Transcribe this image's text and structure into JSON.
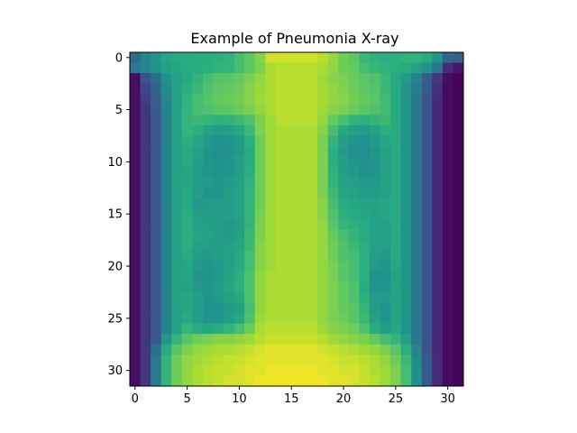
{
  "chart_data": {
    "type": "heatmap",
    "title": "Example of Pneumonia X-ray",
    "xlabel": "",
    "ylabel": "",
    "colormap": "viridis",
    "origin": "upper",
    "xlim": [
      -0.5,
      31.5
    ],
    "ylim": [
      31.5,
      -0.5
    ],
    "xticks": [
      0,
      5,
      10,
      15,
      20,
      25,
      30
    ],
    "yticks": [
      0,
      5,
      10,
      15,
      20,
      25,
      30
    ],
    "grid": false,
    "value_range": [
      0,
      1
    ],
    "values": [
      [
        0.35,
        0.45,
        0.52,
        0.6,
        0.62,
        0.62,
        0.63,
        0.63,
        0.64,
        0.65,
        0.7,
        0.75,
        0.82,
        0.93,
        0.93,
        0.93,
        0.93,
        0.93,
        0.9,
        0.85,
        0.78,
        0.75,
        0.68,
        0.65,
        0.64,
        0.64,
        0.65,
        0.65,
        0.62,
        0.52,
        0.33,
        0.3
      ],
      [
        0.4,
        0.45,
        0.5,
        0.57,
        0.6,
        0.62,
        0.63,
        0.64,
        0.65,
        0.66,
        0.7,
        0.75,
        0.8,
        0.88,
        0.9,
        0.9,
        0.9,
        0.9,
        0.88,
        0.84,
        0.78,
        0.76,
        0.7,
        0.67,
        0.65,
        0.64,
        0.62,
        0.58,
        0.52,
        0.4,
        0.15,
        0.08
      ],
      [
        0.05,
        0.25,
        0.35,
        0.5,
        0.58,
        0.62,
        0.66,
        0.7,
        0.73,
        0.74,
        0.76,
        0.8,
        0.84,
        0.88,
        0.9,
        0.9,
        0.9,
        0.9,
        0.86,
        0.82,
        0.8,
        0.77,
        0.74,
        0.72,
        0.68,
        0.62,
        0.55,
        0.44,
        0.3,
        0.18,
        0.05,
        0.02
      ],
      [
        0.05,
        0.22,
        0.32,
        0.48,
        0.58,
        0.64,
        0.68,
        0.72,
        0.75,
        0.76,
        0.78,
        0.82,
        0.85,
        0.88,
        0.9,
        0.9,
        0.9,
        0.9,
        0.87,
        0.84,
        0.81,
        0.78,
        0.75,
        0.73,
        0.68,
        0.62,
        0.53,
        0.42,
        0.28,
        0.16,
        0.04,
        0.02
      ],
      [
        0.05,
        0.2,
        0.3,
        0.46,
        0.58,
        0.65,
        0.7,
        0.73,
        0.76,
        0.77,
        0.79,
        0.82,
        0.86,
        0.88,
        0.9,
        0.9,
        0.9,
        0.9,
        0.87,
        0.84,
        0.82,
        0.79,
        0.76,
        0.74,
        0.69,
        0.62,
        0.52,
        0.4,
        0.26,
        0.15,
        0.04,
        0.02
      ],
      [
        0.05,
        0.18,
        0.3,
        0.45,
        0.58,
        0.66,
        0.7,
        0.72,
        0.74,
        0.75,
        0.77,
        0.8,
        0.84,
        0.88,
        0.9,
        0.9,
        0.9,
        0.9,
        0.86,
        0.82,
        0.8,
        0.77,
        0.74,
        0.72,
        0.69,
        0.62,
        0.52,
        0.4,
        0.26,
        0.14,
        0.04,
        0.02
      ],
      [
        0.05,
        0.18,
        0.28,
        0.44,
        0.58,
        0.66,
        0.68,
        0.66,
        0.64,
        0.65,
        0.68,
        0.72,
        0.8,
        0.86,
        0.9,
        0.9,
        0.9,
        0.9,
        0.84,
        0.76,
        0.7,
        0.65,
        0.64,
        0.66,
        0.68,
        0.62,
        0.52,
        0.4,
        0.25,
        0.14,
        0.04,
        0.02
      ],
      [
        0.05,
        0.18,
        0.28,
        0.44,
        0.58,
        0.66,
        0.64,
        0.58,
        0.55,
        0.56,
        0.6,
        0.68,
        0.8,
        0.86,
        0.88,
        0.88,
        0.88,
        0.88,
        0.82,
        0.7,
        0.6,
        0.56,
        0.55,
        0.58,
        0.64,
        0.62,
        0.52,
        0.4,
        0.25,
        0.14,
        0.04,
        0.02
      ],
      [
        0.05,
        0.18,
        0.28,
        0.44,
        0.58,
        0.64,
        0.6,
        0.54,
        0.5,
        0.52,
        0.55,
        0.64,
        0.78,
        0.86,
        0.88,
        0.88,
        0.88,
        0.88,
        0.8,
        0.66,
        0.56,
        0.52,
        0.5,
        0.54,
        0.6,
        0.62,
        0.52,
        0.4,
        0.25,
        0.14,
        0.04,
        0.02
      ],
      [
        0.05,
        0.18,
        0.28,
        0.44,
        0.58,
        0.62,
        0.58,
        0.52,
        0.48,
        0.5,
        0.54,
        0.62,
        0.78,
        0.86,
        0.88,
        0.88,
        0.88,
        0.88,
        0.8,
        0.64,
        0.54,
        0.5,
        0.48,
        0.52,
        0.58,
        0.62,
        0.52,
        0.4,
        0.25,
        0.14,
        0.04,
        0.02
      ],
      [
        0.05,
        0.18,
        0.28,
        0.44,
        0.58,
        0.62,
        0.56,
        0.52,
        0.5,
        0.52,
        0.56,
        0.62,
        0.78,
        0.86,
        0.88,
        0.88,
        0.88,
        0.88,
        0.8,
        0.64,
        0.56,
        0.52,
        0.5,
        0.52,
        0.58,
        0.62,
        0.52,
        0.4,
        0.25,
        0.14,
        0.04,
        0.02
      ],
      [
        0.05,
        0.18,
        0.28,
        0.44,
        0.58,
        0.6,
        0.55,
        0.52,
        0.5,
        0.52,
        0.56,
        0.64,
        0.78,
        0.86,
        0.88,
        0.88,
        0.88,
        0.88,
        0.8,
        0.65,
        0.56,
        0.54,
        0.5,
        0.52,
        0.58,
        0.62,
        0.52,
        0.4,
        0.25,
        0.14,
        0.04,
        0.02
      ],
      [
        0.05,
        0.18,
        0.28,
        0.44,
        0.58,
        0.6,
        0.55,
        0.54,
        0.52,
        0.54,
        0.58,
        0.65,
        0.78,
        0.86,
        0.88,
        0.88,
        0.88,
        0.88,
        0.8,
        0.66,
        0.58,
        0.56,
        0.54,
        0.54,
        0.58,
        0.62,
        0.52,
        0.4,
        0.25,
        0.14,
        0.04,
        0.02
      ],
      [
        0.05,
        0.18,
        0.28,
        0.44,
        0.58,
        0.62,
        0.56,
        0.52,
        0.52,
        0.55,
        0.58,
        0.66,
        0.78,
        0.86,
        0.88,
        0.88,
        0.88,
        0.88,
        0.8,
        0.68,
        0.6,
        0.58,
        0.55,
        0.55,
        0.58,
        0.62,
        0.52,
        0.4,
        0.25,
        0.14,
        0.04,
        0.02
      ],
      [
        0.05,
        0.18,
        0.28,
        0.44,
        0.58,
        0.62,
        0.54,
        0.54,
        0.55,
        0.56,
        0.58,
        0.66,
        0.78,
        0.86,
        0.88,
        0.88,
        0.88,
        0.88,
        0.82,
        0.7,
        0.62,
        0.6,
        0.58,
        0.58,
        0.6,
        0.62,
        0.52,
        0.4,
        0.25,
        0.14,
        0.04,
        0.02
      ],
      [
        0.05,
        0.18,
        0.28,
        0.44,
        0.58,
        0.64,
        0.56,
        0.55,
        0.55,
        0.56,
        0.58,
        0.66,
        0.8,
        0.86,
        0.88,
        0.88,
        0.88,
        0.88,
        0.82,
        0.72,
        0.64,
        0.62,
        0.6,
        0.58,
        0.6,
        0.62,
        0.52,
        0.4,
        0.25,
        0.14,
        0.04,
        0.02
      ],
      [
        0.05,
        0.18,
        0.28,
        0.44,
        0.58,
        0.64,
        0.58,
        0.56,
        0.55,
        0.54,
        0.56,
        0.66,
        0.8,
        0.86,
        0.88,
        0.88,
        0.88,
        0.88,
        0.84,
        0.74,
        0.66,
        0.64,
        0.62,
        0.58,
        0.58,
        0.62,
        0.52,
        0.4,
        0.25,
        0.14,
        0.04,
        0.02
      ],
      [
        0.05,
        0.18,
        0.28,
        0.44,
        0.58,
        0.64,
        0.6,
        0.58,
        0.55,
        0.54,
        0.58,
        0.68,
        0.8,
        0.86,
        0.88,
        0.88,
        0.88,
        0.88,
        0.84,
        0.76,
        0.7,
        0.66,
        0.62,
        0.58,
        0.58,
        0.62,
        0.52,
        0.4,
        0.25,
        0.14,
        0.04,
        0.02
      ],
      [
        0.05,
        0.18,
        0.28,
        0.44,
        0.58,
        0.64,
        0.58,
        0.56,
        0.55,
        0.56,
        0.6,
        0.68,
        0.82,
        0.86,
        0.88,
        0.88,
        0.88,
        0.88,
        0.84,
        0.78,
        0.72,
        0.68,
        0.64,
        0.58,
        0.56,
        0.62,
        0.52,
        0.4,
        0.25,
        0.14,
        0.04,
        0.02
      ],
      [
        0.05,
        0.18,
        0.28,
        0.44,
        0.58,
        0.62,
        0.56,
        0.54,
        0.55,
        0.58,
        0.62,
        0.7,
        0.82,
        0.86,
        0.88,
        0.88,
        0.88,
        0.88,
        0.84,
        0.78,
        0.72,
        0.7,
        0.64,
        0.56,
        0.54,
        0.62,
        0.52,
        0.4,
        0.25,
        0.14,
        0.04,
        0.02
      ],
      [
        0.05,
        0.18,
        0.28,
        0.44,
        0.58,
        0.6,
        0.54,
        0.52,
        0.54,
        0.58,
        0.62,
        0.7,
        0.82,
        0.86,
        0.88,
        0.88,
        0.88,
        0.88,
        0.84,
        0.8,
        0.74,
        0.7,
        0.64,
        0.54,
        0.52,
        0.6,
        0.52,
        0.4,
        0.25,
        0.14,
        0.04,
        0.02
      ],
      [
        0.05,
        0.18,
        0.28,
        0.44,
        0.58,
        0.6,
        0.52,
        0.5,
        0.54,
        0.58,
        0.64,
        0.72,
        0.84,
        0.88,
        0.88,
        0.88,
        0.88,
        0.88,
        0.84,
        0.8,
        0.74,
        0.7,
        0.64,
        0.5,
        0.5,
        0.58,
        0.52,
        0.4,
        0.25,
        0.14,
        0.04,
        0.02
      ],
      [
        0.05,
        0.18,
        0.28,
        0.44,
        0.58,
        0.58,
        0.54,
        0.52,
        0.55,
        0.6,
        0.64,
        0.72,
        0.84,
        0.88,
        0.88,
        0.88,
        0.88,
        0.88,
        0.84,
        0.8,
        0.76,
        0.72,
        0.62,
        0.52,
        0.52,
        0.58,
        0.52,
        0.4,
        0.25,
        0.14,
        0.04,
        0.02
      ],
      [
        0.05,
        0.18,
        0.28,
        0.44,
        0.58,
        0.6,
        0.56,
        0.52,
        0.54,
        0.58,
        0.62,
        0.72,
        0.84,
        0.88,
        0.88,
        0.88,
        0.88,
        0.88,
        0.84,
        0.8,
        0.76,
        0.72,
        0.64,
        0.55,
        0.54,
        0.58,
        0.52,
        0.4,
        0.25,
        0.14,
        0.04,
        0.02
      ],
      [
        0.05,
        0.18,
        0.28,
        0.44,
        0.58,
        0.6,
        0.56,
        0.5,
        0.5,
        0.54,
        0.58,
        0.7,
        0.84,
        0.88,
        0.88,
        0.88,
        0.88,
        0.88,
        0.84,
        0.8,
        0.76,
        0.74,
        0.66,
        0.55,
        0.52,
        0.58,
        0.52,
        0.4,
        0.25,
        0.14,
        0.04,
        0.02
      ],
      [
        0.05,
        0.18,
        0.28,
        0.44,
        0.58,
        0.62,
        0.56,
        0.52,
        0.52,
        0.55,
        0.6,
        0.72,
        0.86,
        0.88,
        0.88,
        0.88,
        0.88,
        0.88,
        0.84,
        0.8,
        0.78,
        0.74,
        0.68,
        0.58,
        0.52,
        0.58,
        0.52,
        0.4,
        0.25,
        0.14,
        0.04,
        0.02
      ],
      [
        0.05,
        0.18,
        0.28,
        0.44,
        0.58,
        0.66,
        0.62,
        0.6,
        0.62,
        0.66,
        0.7,
        0.78,
        0.88,
        0.9,
        0.9,
        0.9,
        0.9,
        0.9,
        0.86,
        0.82,
        0.8,
        0.78,
        0.72,
        0.62,
        0.56,
        0.6,
        0.52,
        0.4,
        0.25,
        0.14,
        0.04,
        0.02
      ],
      [
        0.05,
        0.18,
        0.28,
        0.52,
        0.66,
        0.74,
        0.78,
        0.8,
        0.82,
        0.82,
        0.84,
        0.86,
        0.9,
        0.92,
        0.92,
        0.92,
        0.92,
        0.92,
        0.9,
        0.86,
        0.84,
        0.82,
        0.8,
        0.76,
        0.7,
        0.66,
        0.56,
        0.4,
        0.25,
        0.14,
        0.04,
        0.02
      ],
      [
        0.05,
        0.18,
        0.36,
        0.62,
        0.74,
        0.8,
        0.84,
        0.86,
        0.88,
        0.88,
        0.9,
        0.92,
        0.94,
        0.96,
        0.96,
        0.96,
        0.96,
        0.96,
        0.94,
        0.92,
        0.9,
        0.88,
        0.86,
        0.84,
        0.8,
        0.74,
        0.64,
        0.44,
        0.25,
        0.14,
        0.04,
        0.02
      ],
      [
        0.05,
        0.18,
        0.4,
        0.66,
        0.78,
        0.84,
        0.86,
        0.88,
        0.9,
        0.92,
        0.92,
        0.94,
        0.96,
        0.96,
        0.96,
        0.96,
        0.96,
        0.96,
        0.96,
        0.94,
        0.92,
        0.92,
        0.9,
        0.88,
        0.84,
        0.78,
        0.68,
        0.48,
        0.28,
        0.15,
        0.04,
        0.02
      ],
      [
        0.05,
        0.18,
        0.42,
        0.66,
        0.78,
        0.84,
        0.88,
        0.9,
        0.92,
        0.92,
        0.94,
        0.96,
        0.96,
        0.98,
        0.98,
        0.98,
        0.98,
        0.98,
        0.96,
        0.96,
        0.94,
        0.94,
        0.92,
        0.88,
        0.86,
        0.8,
        0.7,
        0.5,
        0.28,
        0.15,
        0.04,
        0.02
      ],
      [
        0.05,
        0.18,
        0.42,
        0.66,
        0.78,
        0.84,
        0.88,
        0.9,
        0.92,
        0.94,
        0.94,
        0.96,
        0.98,
        0.98,
        0.98,
        0.98,
        0.98,
        0.98,
        0.98,
        0.96,
        0.96,
        0.94,
        0.92,
        0.9,
        0.86,
        0.8,
        0.7,
        0.5,
        0.28,
        0.15,
        0.04,
        0.02
      ]
    ]
  }
}
